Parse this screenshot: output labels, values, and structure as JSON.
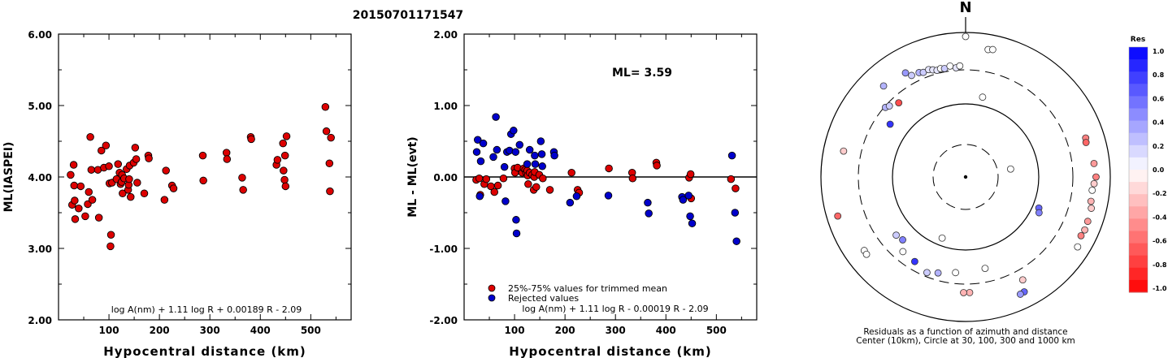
{
  "page_title": "20150701171547",
  "chart_data": [
    {
      "type": "scatter",
      "xlabel": "Hypocentral distance (km)",
      "ylabel": "ML(IASPEI)",
      "xlim": [
        0,
        580
      ],
      "ylim": [
        2.0,
        6.0
      ],
      "xticks": [
        "100",
        "200",
        "300",
        "400",
        "500"
      ],
      "yticks": [
        "2.00",
        "3.00",
        "4.00",
        "5.00",
        "6.00"
      ],
      "formula": "log A(nm) + 1.11 log R + 0.00189 R - 2.09",
      "series": [
        {
          "color": "#dd0000",
          "points": [
            [
              24,
              4.03
            ],
            [
              27,
              3.61
            ],
            [
              30,
              4.17
            ],
            [
              31,
              3.88
            ],
            [
              32,
              3.67
            ],
            [
              33,
              3.41
            ],
            [
              40,
              3.56
            ],
            [
              44,
              3.87
            ],
            [
              53,
              3.45
            ],
            [
              58,
              3.62
            ],
            [
              60,
              3.79
            ],
            [
              63,
              4.56
            ],
            [
              65,
              4.1
            ],
            [
              67,
              3.68
            ],
            [
              78,
              4.1
            ],
            [
              80,
              3.43
            ],
            [
              85,
              4.37
            ],
            [
              90,
              4.13
            ],
            [
              94,
              4.44
            ],
            [
              100,
              4.15
            ],
            [
              101,
              3.91
            ],
            [
              103,
              3.03
            ],
            [
              104,
              3.19
            ],
            [
              106,
              3.92
            ],
            [
              115,
              3.97
            ],
            [
              118,
              4.18
            ],
            [
              121,
              4.06
            ],
            [
              123,
              3.9
            ],
            [
              125,
              3.93
            ],
            [
              126,
              4.03
            ],
            [
              127,
              3.77
            ],
            [
              130,
              3.98
            ],
            [
              135,
              4.11
            ],
            [
              138,
              3.82
            ],
            [
              139,
              3.89
            ],
            [
              140,
              3.97
            ],
            [
              141,
              4.16
            ],
            [
              143,
              3.72
            ],
            [
              149,
              4.2
            ],
            [
              152,
              4.41
            ],
            [
              154,
              4.25
            ],
            [
              156,
              3.92
            ],
            [
              170,
              3.77
            ],
            [
              178,
              4.3
            ],
            [
              179,
              4.26
            ],
            [
              210,
              3.68
            ],
            [
              213,
              4.09
            ],
            [
              225,
              3.88
            ],
            [
              228,
              3.84
            ],
            [
              286,
              4.3
            ],
            [
              287,
              3.95
            ],
            [
              333,
              4.34
            ],
            [
              334,
              4.25
            ],
            [
              364,
              3.99
            ],
            [
              366,
              3.82
            ],
            [
              381,
              4.56
            ],
            [
              382,
              4.53
            ],
            [
              432,
              4.17
            ],
            [
              434,
              4.24
            ],
            [
              445,
              4.47
            ],
            [
              446,
              4.09
            ],
            [
              448,
              3.96
            ],
            [
              449,
              4.3
            ],
            [
              450,
              3.87
            ],
            [
              452,
              4.57
            ],
            [
              529,
              4.98
            ],
            [
              531,
              4.64
            ],
            [
              537,
              4.19
            ],
            [
              538,
              3.8
            ],
            [
              540,
              4.55
            ]
          ]
        }
      ]
    },
    {
      "type": "scatter",
      "xlabel": "Hypocentral distance (km)",
      "ylabel": "ML - ML(evt)",
      "xlim": [
        0,
        580
      ],
      "ylim": [
        -2.0,
        2.0
      ],
      "xticks": [
        "100",
        "200",
        "300",
        "400",
        "500"
      ],
      "yticks": [
        "-2.00",
        "-1.00",
        "0.00",
        "1.00",
        "2.00"
      ],
      "annotation": "ML= 3.59",
      "formula": "log A(nm) + 1.11 log R - 0.00019 R - 2.09",
      "legend": [
        {
          "label": "25%-75% values for trimmed mean",
          "color": "#dd0000"
        },
        {
          "label": "Rejected values",
          "color": "#0000cc"
        }
      ],
      "series": [
        {
          "name": "25%-75% values for trimmed mean",
          "color": "#dd0000",
          "points": [
            [
              24,
              -0.04
            ],
            [
              30,
              -0.02
            ],
            [
              32,
              -0.25
            ],
            [
              40,
              -0.1
            ],
            [
              44,
              -0.03
            ],
            [
              53,
              -0.13
            ],
            [
              60,
              -0.21
            ],
            [
              67,
              -0.12
            ],
            [
              78,
              -0.02
            ],
            [
              100,
              0.12
            ],
            [
              101,
              0.06
            ],
            [
              106,
              0.13
            ],
            [
              115,
              0.06
            ],
            [
              118,
              0.12
            ],
            [
              121,
              0.1
            ],
            [
              123,
              0.06
            ],
            [
              125,
              0.09
            ],
            [
              126,
              0.02
            ],
            [
              127,
              -0.1
            ],
            [
              130,
              0.06
            ],
            [
              135,
              0.03
            ],
            [
              138,
              -0.18
            ],
            [
              139,
              0.0
            ],
            [
              140,
              0.07
            ],
            [
              143,
              -0.14
            ],
            [
              149,
              0.03
            ],
            [
              156,
              -0.02
            ],
            [
              170,
              -0.18
            ],
            [
              213,
              0.06
            ],
            [
              225,
              -0.18
            ],
            [
              228,
              -0.22
            ],
            [
              287,
              0.12
            ],
            [
              333,
              0.06
            ],
            [
              334,
              -0.02
            ],
            [
              381,
              0.2
            ],
            [
              382,
              0.16
            ],
            [
              446,
              -0.01
            ],
            [
              449,
              0.04
            ],
            [
              450,
              -0.3
            ],
            [
              529,
              -0.03
            ],
            [
              538,
              -0.16
            ]
          ]
        },
        {
          "name": "Rejected values",
          "color": "#0000cc",
          "points": [
            [
              25,
              0.35
            ],
            [
              27,
              0.52
            ],
            [
              31,
              -0.27
            ],
            [
              33,
              0.22
            ],
            [
              38,
              0.47
            ],
            [
              58,
              0.28
            ],
            [
              63,
              0.84
            ],
            [
              65,
              0.38
            ],
            [
              80,
              0.14
            ],
            [
              82,
              -0.34
            ],
            [
              85,
              0.35
            ],
            [
              90,
              0.37
            ],
            [
              93,
              0.6
            ],
            [
              98,
              0.65
            ],
            [
              102,
              0.35
            ],
            [
              103,
              -0.6
            ],
            [
              104,
              -0.79
            ],
            [
              110,
              0.45
            ],
            [
              125,
              0.18
            ],
            [
              130,
              0.38
            ],
            [
              140,
              0.3
            ],
            [
              141,
              0.18
            ],
            [
              152,
              0.5
            ],
            [
              154,
              0.32
            ],
            [
              155,
              0.15
            ],
            [
              178,
              0.35
            ],
            [
              179,
              0.3
            ],
            [
              210,
              -0.36
            ],
            [
              223,
              -0.27
            ],
            [
              286,
              -0.26
            ],
            [
              364,
              -0.36
            ],
            [
              366,
              -0.51
            ],
            [
              432,
              -0.28
            ],
            [
              434,
              -0.32
            ],
            [
              445,
              -0.26
            ],
            [
              448,
              -0.55
            ],
            [
              452,
              -0.65
            ],
            [
              531,
              0.3
            ],
            [
              537,
              -0.5
            ],
            [
              540,
              -0.9
            ]
          ]
        }
      ]
    },
    {
      "type": "scatter",
      "subtype": "polar",
      "north_label": "N",
      "caption_line1": "Residuals as a function of azimuth and distance",
      "caption_line2": "Center (10km), Circle at 30, 100, 300 and 1000 km",
      "colorbar_title": "Res",
      "colorbar_ticks": [
        "1.0",
        "0.8",
        "0.6",
        "0.4",
        "0.2",
        "0.0",
        "-0.2",
        "-0.4",
        "-0.6",
        "-0.8",
        "-1.0"
      ],
      "colorscale": {
        "positive": "#0000ff",
        "zero": "#ffffff",
        "negative": "#ff0000"
      },
      "rings_km": [
        30,
        100,
        300,
        1000
      ],
      "points": [
        {
          "az": 0,
          "dist": 1000,
          "res": 0.0
        },
        {
          "az": 10,
          "dist": 700,
          "res": 0.0
        },
        {
          "az": 12,
          "dist": 720,
          "res": 0.0
        },
        {
          "az": 330,
          "dist": 520,
          "res": 0.4
        },
        {
          "az": 318,
          "dist": 560,
          "res": 0.3
        },
        {
          "az": 332,
          "dist": 440,
          "res": 0.2
        },
        {
          "az": 336,
          "dist": 430,
          "res": 0.3
        },
        {
          "az": 338,
          "dist": 410,
          "res": 0.2
        },
        {
          "az": 341,
          "dist": 420,
          "res": 0.1
        },
        {
          "az": 343,
          "dist": 400,
          "res": 0.1
        },
        {
          "az": 345,
          "dist": 380,
          "res": 0.1
        },
        {
          "az": 347,
          "dist": 390,
          "res": 0.0
        },
        {
          "az": 349,
          "dist": 380,
          "res": 0.2
        },
        {
          "az": 352,
          "dist": 400,
          "res": 0.0
        },
        {
          "az": 355,
          "dist": 370,
          "res": 0.1
        },
        {
          "az": 357,
          "dist": 390,
          "res": 0.0
        },
        {
          "az": 311,
          "dist": 330,
          "res": 0.3
        },
        {
          "az": 313,
          "dist": 310,
          "res": 0.2
        },
        {
          "az": 318,
          "dist": 270,
          "res": -0.7
        },
        {
          "az": 305,
          "dist": 210,
          "res": 0.8
        },
        {
          "az": 12,
          "dist": 150,
          "res": 0.0
        },
        {
          "az": 72,
          "dist": 630,
          "res": -0.5
        },
        {
          "az": 74,
          "dist": 610,
          "res": -0.6
        },
        {
          "az": 84,
          "dist": 690,
          "res": -0.4
        },
        {
          "az": 90,
          "dist": 720,
          "res": -0.5
        },
        {
          "az": 93,
          "dist": 680,
          "res": -0.2
        },
        {
          "az": 96,
          "dist": 650,
          "res": 0.0
        },
        {
          "az": 101,
          "dist": 660,
          "res": -0.3
        },
        {
          "az": 104,
          "dist": 700,
          "res": -0.2
        },
        {
          "az": 110,
          "dist": 710,
          "res": -0.4
        },
        {
          "az": 114,
          "dist": 720,
          "res": -0.3
        },
        {
          "az": 117,
          "dist": 700,
          "res": -0.5
        },
        {
          "az": 122,
          "dist": 760,
          "res": 0.0
        },
        {
          "az": 80,
          "dist": 50,
          "res": 0.0
        },
        {
          "az": 113,
          "dist": 140,
          "res": 0.6
        },
        {
          "az": 116,
          "dist": 150,
          "res": 0.5
        },
        {
          "az": 151,
          "dist": 480,
          "res": -0.2
        },
        {
          "az": 168,
          "dist": 220,
          "res": 0.0
        },
        {
          "az": 153,
          "dist": 690,
          "res": 0.6
        },
        {
          "az": 155,
          "dist": 700,
          "res": 0.4
        },
        {
          "az": 178,
          "dist": 450,
          "res": -0.3
        },
        {
          "az": 181,
          "dist": 450,
          "res": -0.3
        },
        {
          "az": 186,
          "dist": 240,
          "res": 0.0
        },
        {
          "az": 196,
          "dist": 270,
          "res": 0.3
        },
        {
          "az": 202,
          "dist": 300,
          "res": 0.2
        },
        {
          "az": 211,
          "dist": 260,
          "res": 0.8
        },
        {
          "az": 220,
          "dist": 250,
          "res": 0.0
        },
        {
          "az": 225,
          "dist": 190,
          "res": 0.5
        },
        {
          "az": 230,
          "dist": 200,
          "res": 0.2
        },
        {
          "az": 234,
          "dist": 610,
          "res": 0.0
        },
        {
          "az": 232,
          "dist": 620,
          "res": 0.0
        },
        {
          "az": 253,
          "dist": 800,
          "res": -0.6
        },
        {
          "az": 282,
          "dist": 600,
          "res": -0.2
        },
        {
          "az": 201,
          "dist": 90,
          "res": 0.0
        }
      ]
    }
  ]
}
